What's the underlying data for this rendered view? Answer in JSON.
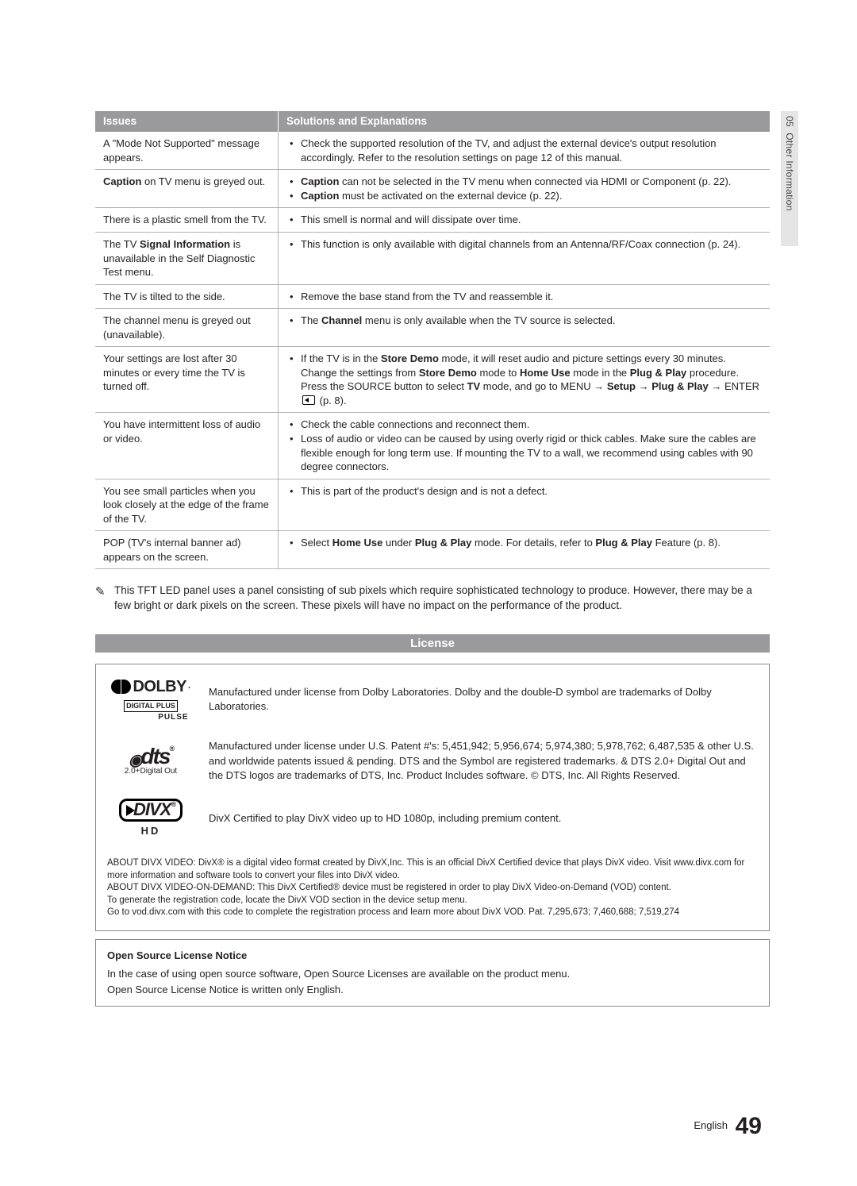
{
  "sideTab": {
    "chapter": "05",
    "title": "Other Information"
  },
  "table": {
    "header": {
      "col1": "Issues",
      "col2": "Solutions and Explanations"
    },
    "rows": [
      {
        "issue_html": "A \"Mode Not Supported\" message appears.",
        "sol_html": "<ul class='bul'><li>Check the supported resolution of the TV, and adjust the external device's output resolution accordingly. Refer to the resolution settings on page 12 of this manual.</li></ul>"
      },
      {
        "issue_html": "<b>Caption</b> on TV menu is greyed out.",
        "sol_html": "<ul class='bul'><li><b>Caption</b> can not be selected in the TV menu when connected via HDMI or Component (p. 22).</li><li><b>Caption</b> must be activated on the external device (p. 22).</li></ul>"
      },
      {
        "issue_html": "There is a plastic smell from the TV.",
        "sol_html": "<ul class='bul'><li>This smell is normal and will dissipate over time.</li></ul>"
      },
      {
        "issue_html": "The TV <b>Signal Information</b> is unavailable in the Self Diagnostic Test menu.",
        "sol_html": "<ul class='bul'><li>This function is only available with digital channels from an Antenna/RF/Coax connection (p. 24).</li></ul>"
      },
      {
        "issue_html": "The TV is tilted to the side.",
        "sol_html": "<ul class='bul'><li>Remove the base stand from the TV and reassemble it.</li></ul>"
      },
      {
        "issue_html": "The channel menu is greyed out (unavailable).",
        "sol_html": "<ul class='bul'><li>The <b>Channel</b> menu is only available when the TV source is selected.</li></ul>"
      },
      {
        "issue_html": "Your settings are lost after 30 minutes or every time the TV is turned off.",
        "sol_html": "<ul class='bul'><li>If the TV is in the <b>Store Demo</b> mode, it will reset audio and picture settings every 30 minutes. Change the settings from <b>Store Demo</b> mode to <b>Home Use</b> mode in the <b>Plug &amp; Play</b> procedure. Press the SOURCE button to select <b>TV</b> mode, and go to MENU → <b>Setup</b> → <b>Plug &amp; Play</b> → ENTER<span class='enter-ico' data-name='enter-icon' data-interactable='false'></span> (p. 8).</li></ul>"
      },
      {
        "issue_html": "You have intermittent loss of audio or video.",
        "sol_html": "<ul class='bul'><li>Check the cable connections and reconnect them.</li><li>Loss of audio or video can be caused by using overly rigid or thick cables. Make sure the cables are flexible enough for long term use. If mounting the TV to a wall, we recommend using cables with 90 degree connectors.</li></ul>"
      },
      {
        "issue_html": "You see small particles when you look closely at the edge of the frame of the TV.",
        "sol_html": "<ul class='bul'><li>This is part of the product's design and is not a defect.</li></ul>"
      },
      {
        "issue_html": "POP (TV's internal banner ad) appears on the screen.",
        "sol_html": "<ul class='bul'><li>Select <b>Home Use</b> under <b>Plug &amp; Play</b> mode. For details, refer to <b>Plug &amp; Play</b> Feature (p. 8).</li></ul>"
      }
    ]
  },
  "note": "This TFT LED panel uses a panel consisting of sub pixels which require sophisticated technology to produce. However, there may be a few bright or dark pixels on the screen. These pixels will have no impact on the performance of the product.",
  "licenseBar": "License",
  "dolby": {
    "brand": "DOLBY",
    "sub1": "DIGITAL PLUS",
    "sub2": "PULSE",
    "text": "Manufactured under license from Dolby Laboratories. Dolby and the double-D symbol are trademarks of Dolby Laboratories."
  },
  "dts": {
    "brand": "dts",
    "sub": "2.0+Digital Out",
    "text": "Manufactured under license under U.S. Patent #'s: 5,451,942; 5,956,674; 5,974,380; 5,978,762; 6,487,535 & other U.S. and worldwide patents issued & pending. DTS and the Symbol are registered trademarks. & DTS 2.0+ Digital Out and the DTS logos are trademarks of DTS, Inc. Product Includes software. © DTS, Inc. All Rights Reserved."
  },
  "divx": {
    "brand": "DIVX",
    "sub": "HD",
    "text": "DivX Certified to play DivX video up to HD 1080p, including premium content."
  },
  "about": {
    "l1": "ABOUT DIVX VIDEO: DivX® is a digital video format created by DivX,Inc. This is an official DivX Certified device that plays DivX video. Visit www.divx.com for more information and software tools to convert your files into DivX video.",
    "l2": "ABOUT DIVX VIDEO-ON-DEMAND: This DivX Certified® device must be registered in order to play DivX Video-on-Demand (VOD) content.",
    "l3": "To generate the registration code, locate the DivX VOD section in the device setup menu.",
    "l4": "Go to vod.divx.com with this code to complete the registration process and learn more about DivX VOD. Pat. 7,295,673; 7,460,688; 7,519,274"
  },
  "oss": {
    "title": "Open Source License Notice",
    "line1": "In the case of using open source software, Open Source Licenses are available on the product menu.",
    "line2": "Open Source License Notice is written only English."
  },
  "footer": {
    "lang": "English",
    "page": "49"
  }
}
